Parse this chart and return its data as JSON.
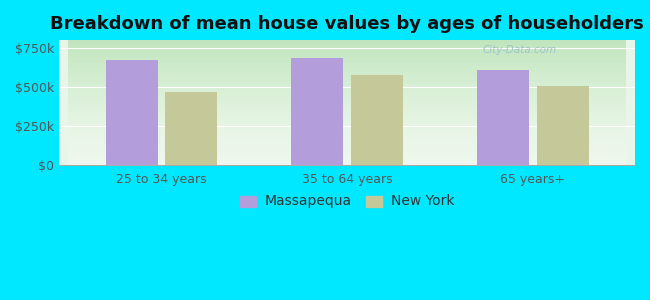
{
  "title": "Breakdown of mean house values by ages of householders",
  "categories": [
    "25 to 34 years",
    "35 to 64 years",
    "65 years+"
  ],
  "massapequa_values": [
    670000,
    685000,
    610000
  ],
  "newyork_values": [
    470000,
    575000,
    505000
  ],
  "massapequa_color": "#b39ddb",
  "newyork_color": "#c5c99a",
  "background_outer": "#00e8ff",
  "ylim": [
    0,
    800000
  ],
  "yticks": [
    0,
    250000,
    500000,
    750000
  ],
  "ytick_labels": [
    "$0",
    "$250k",
    "$500k",
    "$750k"
  ],
  "bar_width": 0.28,
  "legend_labels": [
    "Massapequa",
    "New York"
  ],
  "title_fontsize": 13,
  "axis_fontsize": 9,
  "legend_fontsize": 10,
  "watermark": "City-Data.com"
}
